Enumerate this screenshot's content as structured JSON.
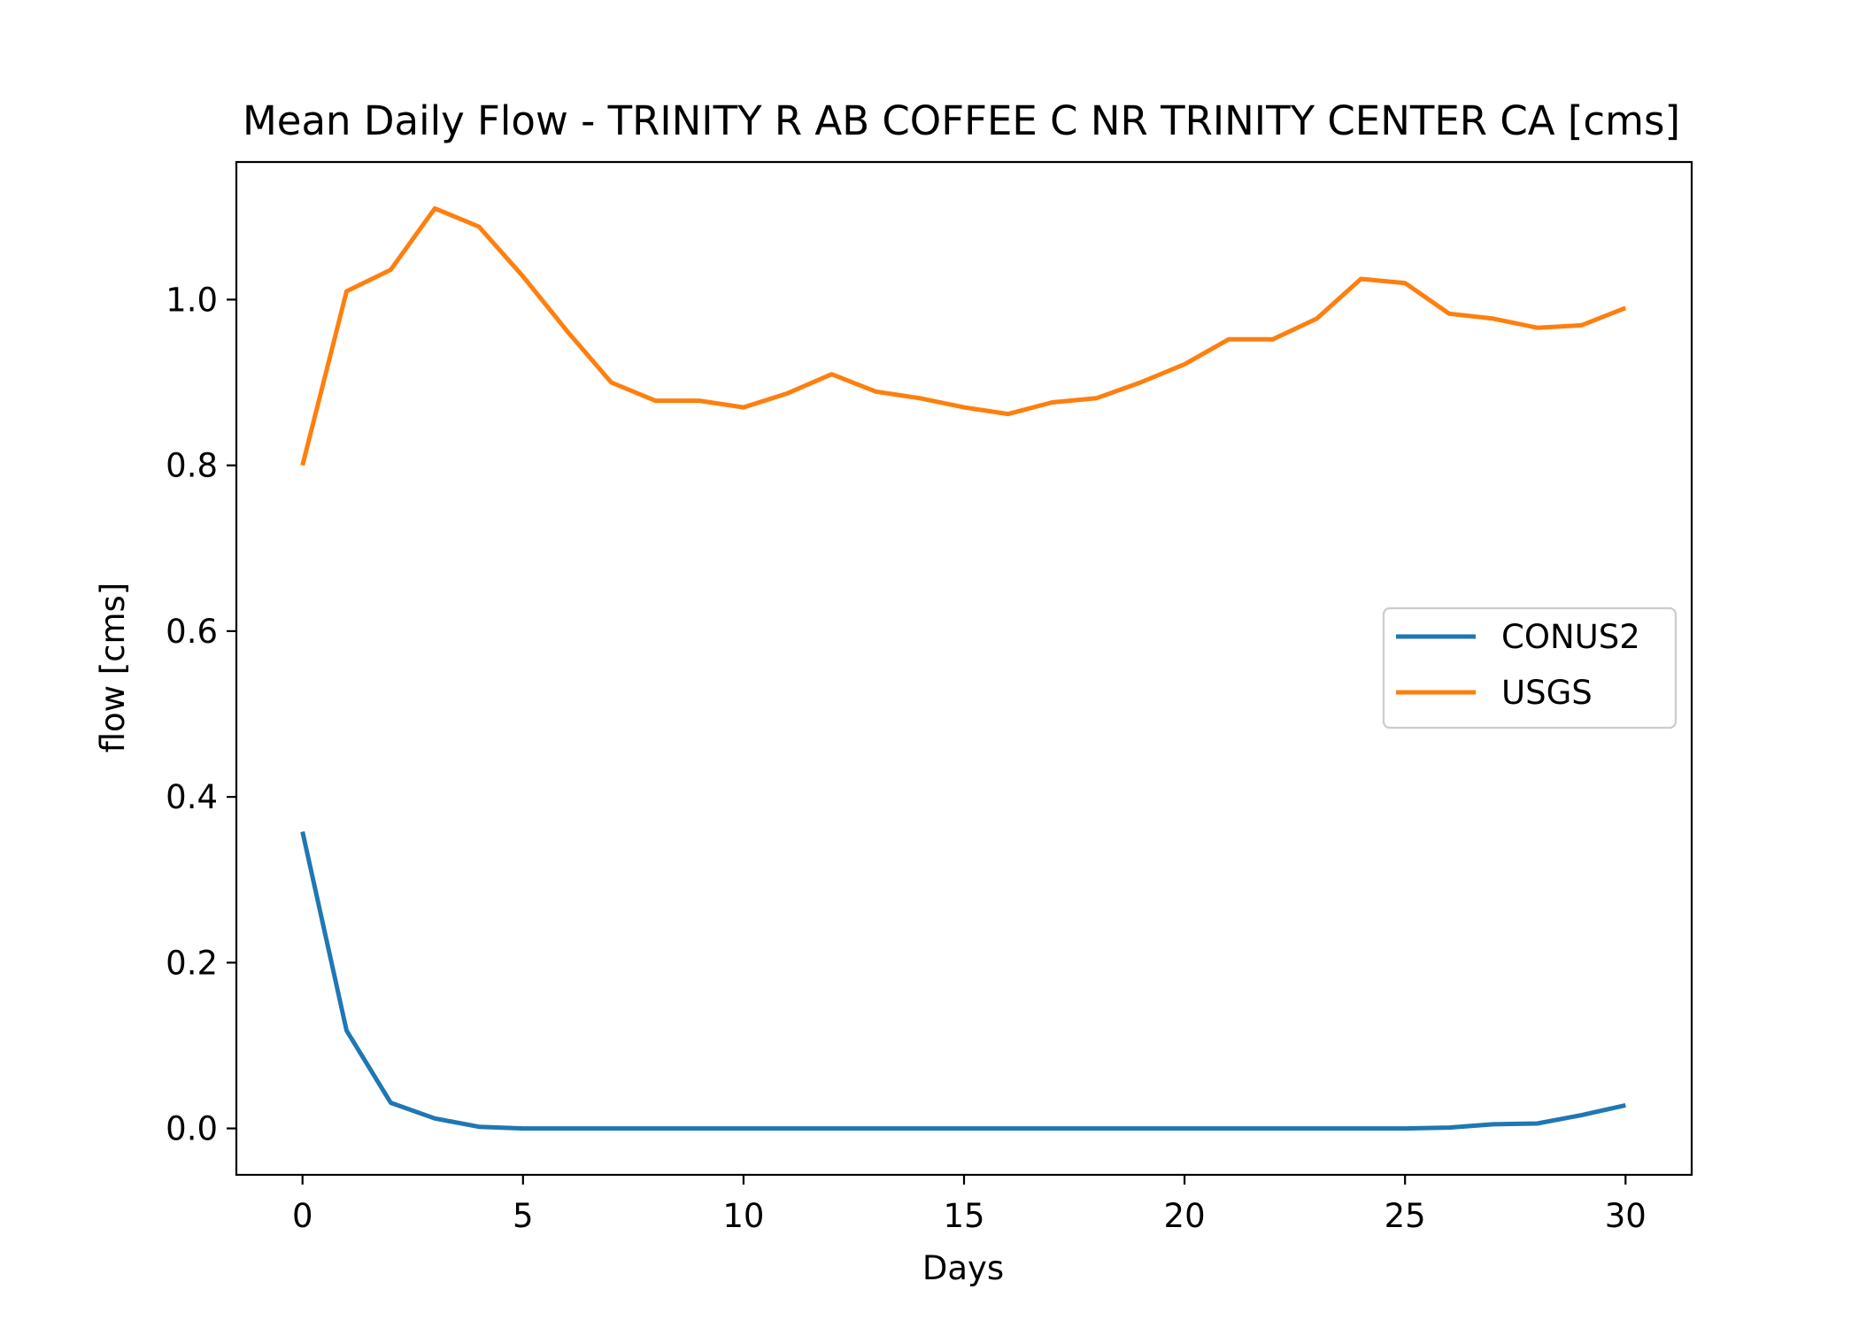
{
  "chart_data": {
    "type": "line",
    "title": "Mean Daily Flow - TRINITY R AB COFFEE C NR TRINITY CENTER CA [cms]",
    "xlabel": "Days",
    "ylabel": "flow [cms]",
    "xlim": [
      -1.5,
      31.5
    ],
    "ylim": [
      -0.056,
      1.166
    ],
    "xticks": [
      0,
      5,
      10,
      15,
      20,
      25,
      30
    ],
    "xtick_labels": [
      "0",
      "5",
      "10",
      "15",
      "20",
      "25",
      "30"
    ],
    "yticks": [
      0.0,
      0.2,
      0.4,
      0.6,
      0.8,
      1.0
    ],
    "ytick_labels": [
      "0.0",
      "0.2",
      "0.4",
      "0.6",
      "0.8",
      "1.0"
    ],
    "grid": false,
    "legend_position": "center-right",
    "x": [
      0,
      1,
      2,
      3,
      4,
      5,
      6,
      7,
      8,
      9,
      10,
      11,
      12,
      13,
      14,
      15,
      16,
      17,
      18,
      19,
      20,
      21,
      22,
      23,
      24,
      25,
      26,
      27,
      28,
      29,
      30
    ],
    "series": [
      {
        "name": "CONUS2",
        "color": "#1f77b4",
        "values": [
          0.358,
          0.118,
          0.031,
          0.012,
          0.002,
          0.0,
          0.0,
          0.0,
          0.0,
          0.0,
          0.0,
          0.0,
          0.0,
          0.0,
          0.0,
          0.0,
          0.0,
          0.0,
          0.0,
          0.0,
          0.0,
          0.0,
          0.0,
          0.0,
          0.0,
          0.0,
          0.001,
          0.005,
          0.006,
          0.016,
          0.028
        ]
      },
      {
        "name": "USGS",
        "color": "#ff7f0e",
        "values": [
          0.8,
          1.01,
          1.036,
          1.11,
          1.088,
          1.028,
          0.962,
          0.9,
          0.878,
          0.878,
          0.87,
          0.887,
          0.91,
          0.889,
          0.881,
          0.87,
          0.862,
          0.876,
          0.881,
          0.9,
          0.922,
          0.952,
          0.952,
          0.977,
          1.025,
          1.02,
          0.983,
          0.977,
          0.966,
          0.969,
          0.99
        ]
      }
    ]
  }
}
